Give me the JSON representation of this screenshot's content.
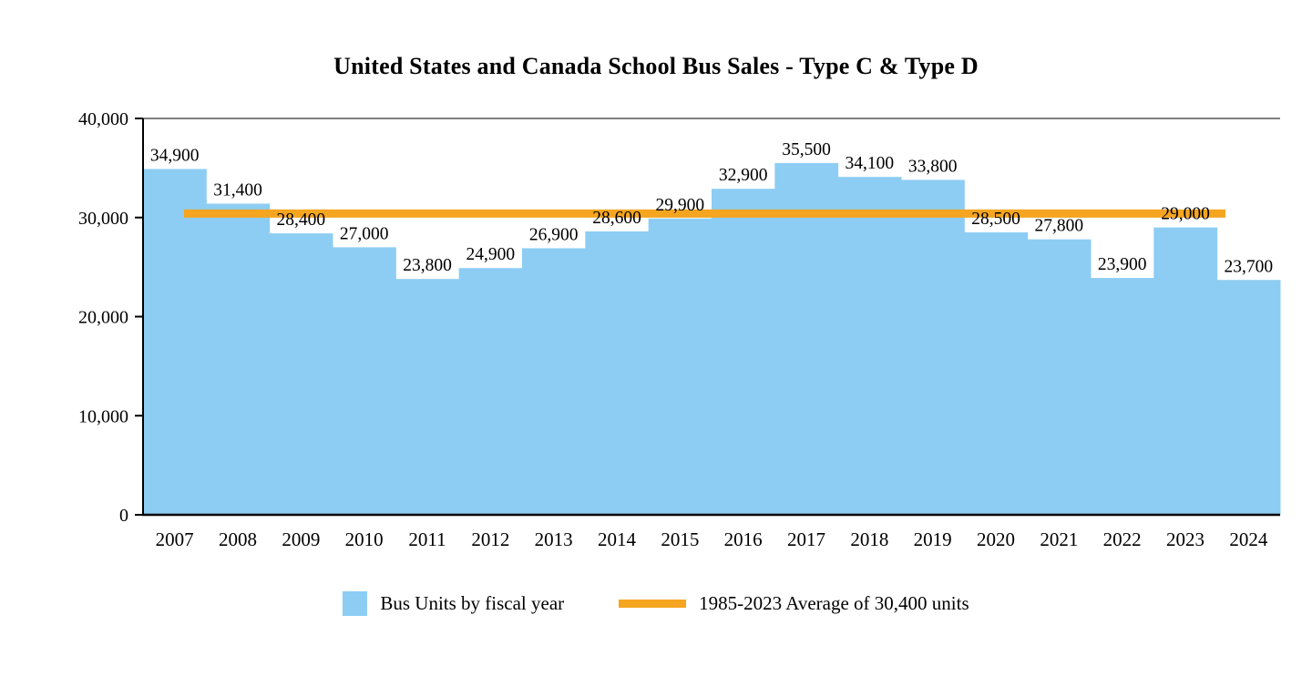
{
  "title": "United States and Canada School Bus Sales - Type C & Type D",
  "legend": {
    "bars_label": "Bus Units by fiscal year",
    "avg_label": "1985-2023 Average of 30,400 units"
  },
  "colors": {
    "bar": "#8DCDF4",
    "avg_line": "#F5A51F",
    "axis": "#000000",
    "label_text": "#000000"
  },
  "chart_data": {
    "type": "bar",
    "title": "United States and Canada School Bus Sales - Type C & Type D",
    "categories": [
      "2007",
      "2008",
      "2009",
      "2010",
      "2011",
      "2012",
      "2013",
      "2014",
      "2015",
      "2016",
      "2017",
      "2018",
      "2019",
      "2020",
      "2021",
      "2022",
      "2023",
      "2024"
    ],
    "values": [
      34900,
      31400,
      28400,
      27000,
      23800,
      24900,
      26900,
      28600,
      29900,
      32900,
      35500,
      34100,
      33800,
      28500,
      27800,
      23900,
      29000,
      23700
    ],
    "data_labels": [
      "34,900",
      "31,400",
      "28,400",
      "27,000",
      "23,800",
      "24,900",
      "26,900",
      "28,600",
      "29,900",
      "32,900",
      "35,500",
      "34,100",
      "33,800",
      "28,500",
      "27,800",
      "23,900",
      "29,000",
      "23,700"
    ],
    "average_line": {
      "value": 30400,
      "label": "1985-2023 Average of 30,400 units"
    },
    "xlabel": "",
    "ylabel": "",
    "ylim": [
      0,
      40000
    ],
    "yticks": [
      0,
      10000,
      20000,
      30000,
      40000
    ],
    "ytick_labels": [
      "0",
      "10,000",
      "20,000",
      "30,000",
      "40,000"
    ],
    "grid": false,
    "legend_position": "bottom"
  }
}
